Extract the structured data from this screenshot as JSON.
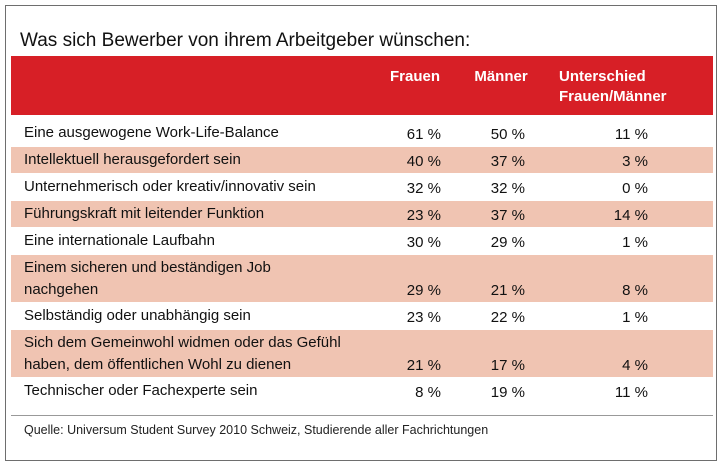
{
  "title": "Was sich Bewerber von ihrem Arbeitgeber wünschen:",
  "header": {
    "col_women": "Frauen",
    "col_men": "Männer",
    "col_diff": "Unterschied Frauen/Männer"
  },
  "rows": [
    {
      "label": "Eine ausgewogene Work-Life-Balance",
      "women": "61 %",
      "men": "50 %",
      "diff": "11 %"
    },
    {
      "label": "Intellektuell herausgefordert sein",
      "women": "40 %",
      "men": "37 %",
      "diff": "3 %"
    },
    {
      "label": "Unternehmerisch oder kreativ/innovativ sein",
      "women": "32 %",
      "men": "32 %",
      "diff": "0 %"
    },
    {
      "label": "Führungskraft mit leitender Funktion",
      "women": "23 %",
      "men": "37 %",
      "diff": "14 %"
    },
    {
      "label": "Eine internationale Laufbahn",
      "women": "30 %",
      "men": "29 %",
      "diff": "1 %"
    },
    {
      "label": "Einem sicheren und beständigen Job nachgehen",
      "women": "29 %",
      "men": "21 %",
      "diff": "8 %"
    },
    {
      "label": "Selbständig oder unabhängig sein",
      "women": "23 %",
      "men": "22 %",
      "diff": "1 %"
    },
    {
      "label": "Sich dem Gemeinwohl widmen oder das Gefühl haben, dem öffentlichen Wohl zu dienen",
      "women": "21 %",
      "men": "17 %",
      "diff": "4 %"
    },
    {
      "label": "Technischer oder Fachexperte sein",
      "women": "8 %",
      "men": "19 %",
      "diff": "11 %"
    }
  ],
  "source": "Quelle: Universum Student Survey 2010 Schweiz, Studierende aller Fachrichtungen",
  "colors": {
    "header_red": "#d71f26",
    "row_shade": "#f0c4b2"
  }
}
